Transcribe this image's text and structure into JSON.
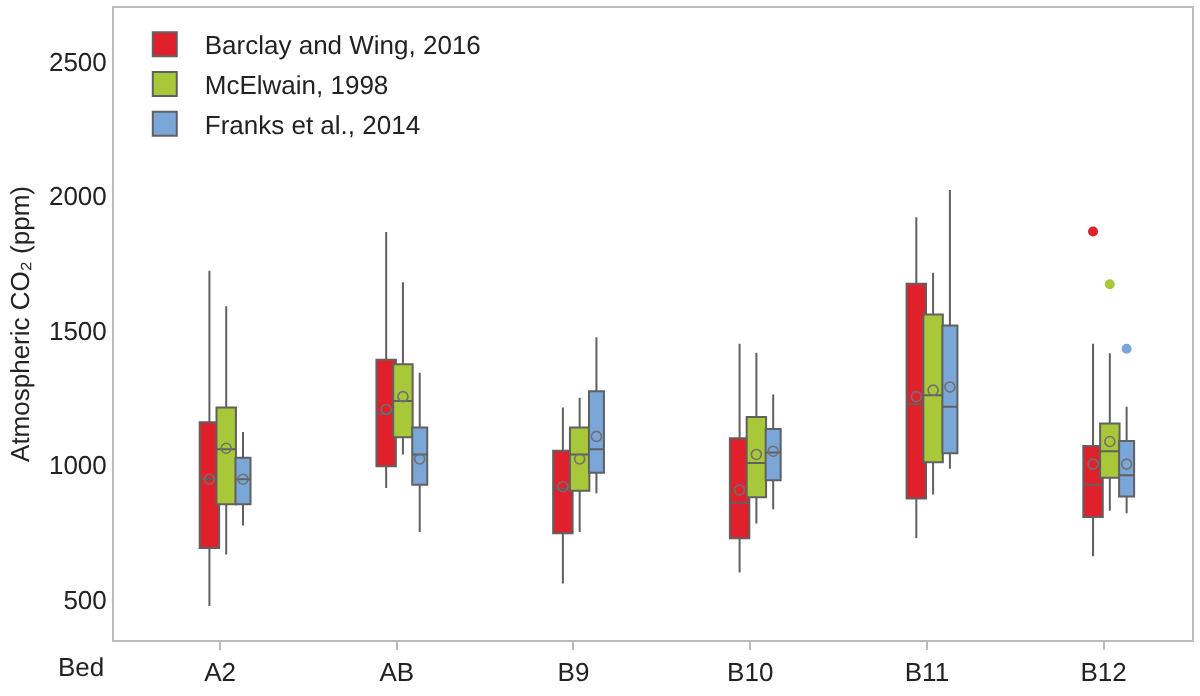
{
  "chart_data": {
    "type": "box",
    "xlabel": "Bed",
    "ylabel": "Atmospheric CO₂ (ppm)",
    "categories": [
      "A2",
      "AB",
      "B9",
      "B10",
      "B11",
      "B12"
    ],
    "ylim": [
      350,
      2700
    ],
    "yticks": [
      500,
      1000,
      1500,
      2000,
      2500
    ],
    "legend": "top left",
    "series": [
      {
        "name": "Barclay and Wing, 2016",
        "color": "#e0202a",
        "boxes": [
          {
            "low": 476,
            "q1": 692,
            "median": 948,
            "q3": 1160,
            "high": 1723,
            "mean": 948
          },
          {
            "low": 915,
            "q1": 996,
            "median": 1191,
            "q3": 1392,
            "high": 1867,
            "mean": 1207
          },
          {
            "low": 560,
            "q1": 747,
            "median": 912,
            "q3": 1054,
            "high": 1215,
            "mean": 920
          },
          {
            "low": 601,
            "q1": 728,
            "median": 860,
            "q3": 1100,
            "high": 1452,
            "mean": 908
          },
          {
            "low": 728,
            "q1": 876,
            "median": 1227,
            "q3": 1675,
            "high": 1922,
            "mean": 1255
          },
          {
            "low": 661,
            "q1": 807,
            "median": 927,
            "q3": 1071,
            "high": 1452,
            "mean": 1004,
            "outliers": [
              1869
            ]
          }
        ]
      },
      {
        "name": "McElwain, 1998",
        "color": "#a8c83a",
        "boxes": [
          {
            "low": 668,
            "q1": 855,
            "median": 1059,
            "q3": 1215,
            "high": 1591,
            "mean": 1063
          },
          {
            "low": 1040,
            "q1": 1104,
            "median": 1239,
            "q3": 1375,
            "high": 1680,
            "mean": 1255
          },
          {
            "low": 752,
            "q1": 905,
            "median": 1040,
            "q3": 1140,
            "high": 1251,
            "mean": 1023
          },
          {
            "low": 783,
            "q1": 881,
            "median": 1008,
            "q3": 1179,
            "high": 1418,
            "mean": 1040
          },
          {
            "low": 891,
            "q1": 1011,
            "median": 1260,
            "q3": 1560,
            "high": 1716,
            "mean": 1279
          },
          {
            "low": 831,
            "q1": 953,
            "median": 1052,
            "q3": 1155,
            "high": 1416,
            "mean": 1088,
            "outliers": [
              1673
            ]
          }
        ]
      },
      {
        "name": "Franks et al., 2014",
        "color": "#7aa6d8",
        "boxes": [
          {
            "low": 776,
            "q1": 855,
            "median": 948,
            "q3": 1028,
            "high": 1123,
            "mean": 948
          },
          {
            "low": 752,
            "q1": 927,
            "median": 1040,
            "q3": 1140,
            "high": 1344,
            "mean": 1023
          },
          {
            "low": 896,
            "q1": 972,
            "median": 1059,
            "q3": 1275,
            "high": 1476,
            "mean": 1107
          },
          {
            "low": 836,
            "q1": 944,
            "median": 1047,
            "q3": 1135,
            "high": 1263,
            "mean": 1052
          },
          {
            "low": 987,
            "q1": 1044,
            "median": 1217,
            "q3": 1519,
            "high": 2023,
            "mean": 1291
          },
          {
            "low": 821,
            "q1": 884,
            "median": 963,
            "q3": 1090,
            "high": 1217,
            "mean": 1004,
            "outliers": [
              1433
            ]
          }
        ]
      }
    ]
  }
}
